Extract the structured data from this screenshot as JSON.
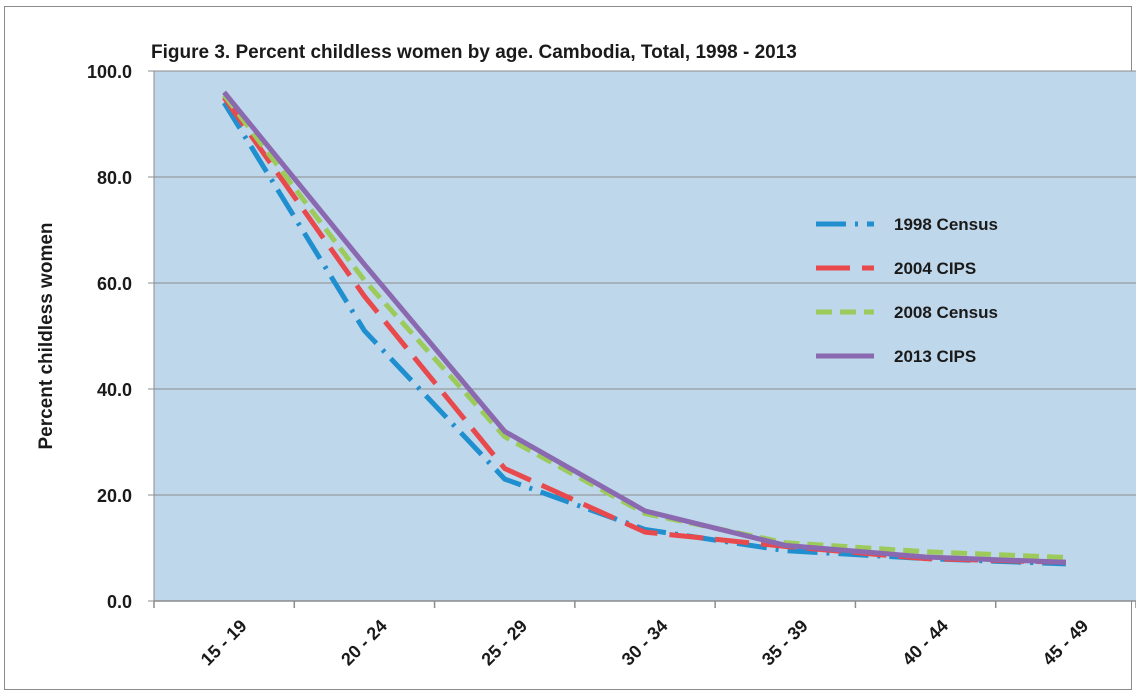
{
  "chart_data": {
    "type": "line",
    "title": "Figure 3. Percent childless women by age. Cambodia, Total, 1998 - 2013",
    "xlabel": "",
    "ylabel": "Percent childless women",
    "categories": [
      "15 - 19",
      "20 - 24",
      "25 - 29",
      "30 - 34",
      "35 - 39",
      "40 - 44",
      "45 - 49"
    ],
    "ylim": [
      0,
      100
    ],
    "yticks": [
      "0.0",
      "20.0",
      "40.0",
      "60.0",
      "80.0",
      "100.0"
    ],
    "grid": true,
    "legend_position": "right",
    "series": [
      {
        "name": "1998 Census",
        "color": "#1f8fcf",
        "style": "dash-dot",
        "values": [
          94.0,
          51.0,
          23.0,
          13.5,
          9.5,
          8.0,
          7.0
        ]
      },
      {
        "name": "2004 CIPS",
        "color": "#e8494d",
        "style": "long-dash",
        "values": [
          95.0,
          57.5,
          25.0,
          13.0,
          10.3,
          8.0,
          7.3
        ]
      },
      {
        "name": "2008 Census",
        "color": "#9ccb5c",
        "style": "dash",
        "values": [
          95.5,
          60.5,
          31.0,
          16.5,
          11.0,
          9.3,
          8.2
        ]
      },
      {
        "name": "2013 CIPS",
        "color": "#8b69b0",
        "style": "solid",
        "values": [
          96.0,
          63.5,
          32.0,
          17.0,
          10.5,
          8.3,
          7.3
        ]
      }
    ]
  }
}
